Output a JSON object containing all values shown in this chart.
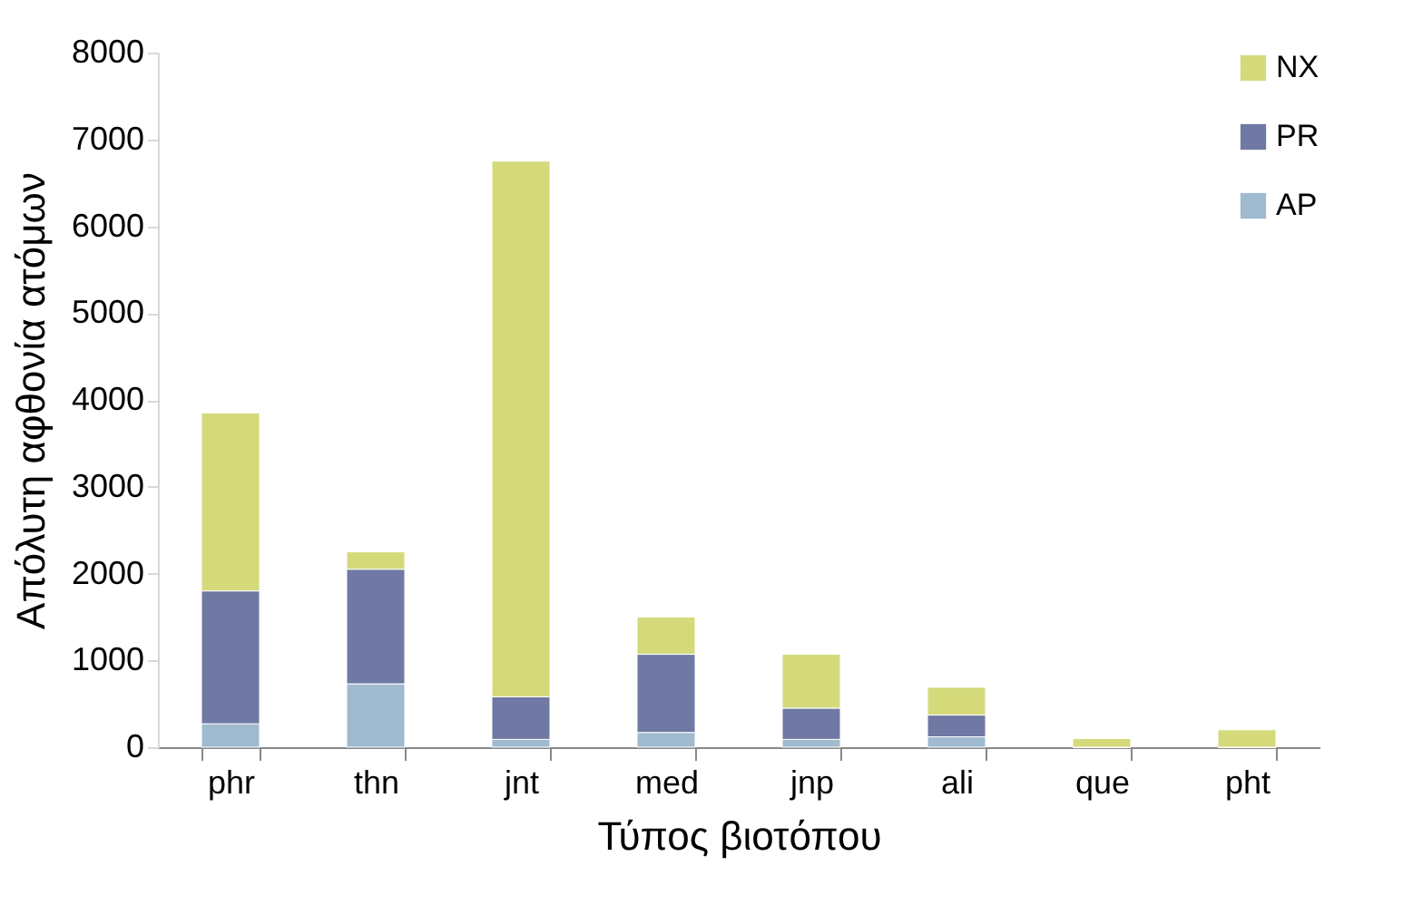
{
  "chart_data": {
    "type": "bar",
    "stacked": true,
    "xlabel": "Τύπος βιοτόπου",
    "ylabel": "Απόλυτη αφθονία ατόμων",
    "categories": [
      "phr",
      "thn",
      "jnt",
      "med",
      "jnp",
      "ali",
      "que",
      "pht"
    ],
    "series": [
      {
        "name": "AP",
        "color": "#a0bad0",
        "values": [
          270,
          730,
          90,
          170,
          90,
          120,
          0,
          0
        ]
      },
      {
        "name": "PR",
        "color": "#6f79a3",
        "values": [
          1530,
          1320,
          490,
          900,
          360,
          250,
          0,
          0
        ]
      },
      {
        "name": "NX",
        "color": "#d4da7a",
        "values": [
          2050,
          200,
          6170,
          430,
          620,
          320,
          100,
          200
        ]
      }
    ],
    "ylim": [
      0,
      8000
    ],
    "yticks": [
      0,
      1000,
      2000,
      3000,
      4000,
      5000,
      6000,
      7000,
      8000
    ],
    "grid": false,
    "legend": "top right"
  }
}
